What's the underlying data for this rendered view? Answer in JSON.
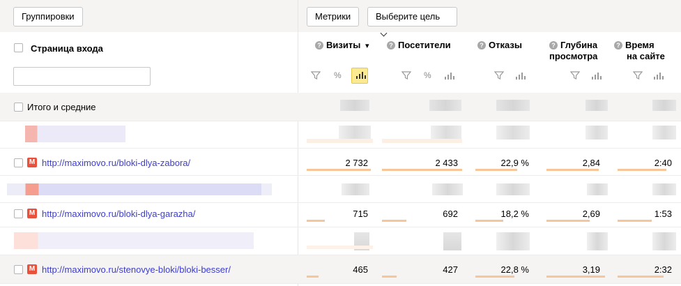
{
  "toolbar": {
    "groupings_label": "Группировки",
    "metrics_label": "Метрики",
    "goal_select_value": "Выберите цель"
  },
  "dimension": {
    "header": "Страница входа",
    "filter_placeholder": ""
  },
  "columns": [
    {
      "title": "Визиты",
      "sorted": "desc",
      "sort_glyph": "▾",
      "help": "?"
    },
    {
      "title": "Посетители",
      "help": "?"
    },
    {
      "title": "Отказы",
      "help": "?"
    },
    {
      "title_line1": "Глубина",
      "title_line2": "просмотра",
      "help": "?"
    },
    {
      "title_line1": "Время",
      "title_line2": "на сайте",
      "help": "?"
    }
  ],
  "tools": {
    "percent": "%"
  },
  "totals_label": "Итого и средние",
  "rows": [
    {
      "url": "http://maximovo.ru/bloki-dlya-zabora/",
      "icon_text": "M",
      "visits": "2 732",
      "visitors": "2 433",
      "bounce": "22,9 %",
      "depth": "2,84",
      "time": "2:40",
      "visits_share": 1.0,
      "visitors_share": 1.0,
      "bounce_share": 0.75,
      "depth_share": 0.85,
      "time_share": 0.85
    },
    {
      "url": "http://maximovo.ru/bloki-dlya-garazha/",
      "icon_text": "M",
      "visits": "715",
      "visitors": "692",
      "bounce": "18,2 %",
      "depth": "2,69",
      "time": "1:53",
      "visits_share": 0.28,
      "visitors_share": 0.3,
      "bounce_share": 0.5,
      "depth_share": 0.7,
      "time_share": 0.6
    },
    {
      "url": "http://maximovo.ru/stenovye-bloki/bloki-besser/",
      "icon_text": "M",
      "visits": "465",
      "visitors": "427",
      "bounce": "22,8 %",
      "depth": "3,19",
      "time": "2:32",
      "visits_share": 0.18,
      "visitors_share": 0.18,
      "bounce_share": 0.7,
      "depth_share": 0.95,
      "time_share": 0.8
    }
  ],
  "colors": {
    "link": "#3d3dcf",
    "bar": "#f7c59a",
    "active_tool": "#fcea91",
    "brand_icon": "#e8513b"
  }
}
